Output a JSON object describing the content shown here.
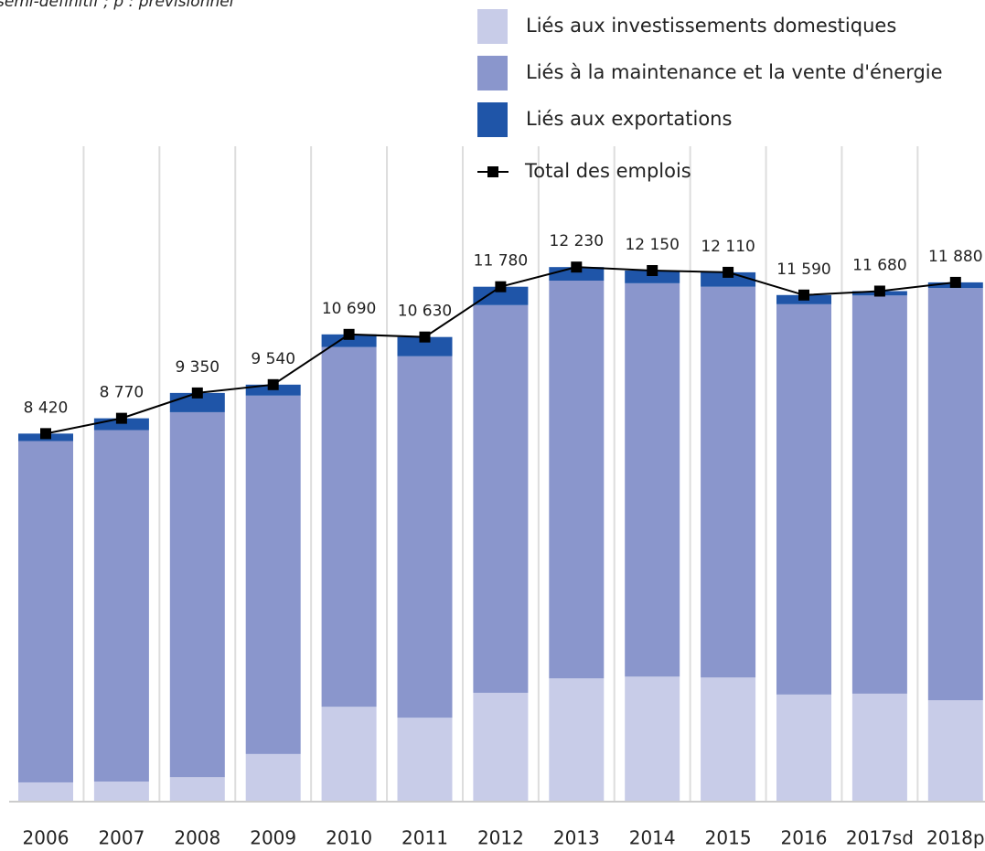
{
  "chart_data": {
    "type": "stacked-bar-line",
    "subtitle": "semi-définitif ; p : prévisionnel",
    "categories": [
      "2006",
      "2007",
      "2008",
      "2009",
      "2010",
      "2011",
      "2012",
      "2013",
      "2014",
      "2015",
      "2016",
      "2017sd",
      "2018p"
    ],
    "series": [
      {
        "name": "Liés aux investissements domestiques",
        "color": "#c8cce8",
        "kind": "bar",
        "values": [
          440,
          460,
          560,
          1090,
          2170,
          1920,
          2490,
          2820,
          2860,
          2840,
          2450,
          2470,
          2320
        ]
      },
      {
        "name": "Liés à la maintenance et la vente d'énergie",
        "color": "#8a96cc",
        "kind": "bar",
        "values": [
          7810,
          8040,
          8350,
          8200,
          8230,
          8270,
          8870,
          9100,
          9000,
          8940,
          8930,
          9110,
          9430
        ]
      },
      {
        "name": "Liés aux exportations",
        "color": "#1f55a8",
        "kind": "bar",
        "values": [
          170,
          270,
          440,
          250,
          290,
          440,
          420,
          310,
          290,
          330,
          210,
          100,
          130
        ]
      },
      {
        "name": "Total des emplois",
        "color": "#000000",
        "kind": "line",
        "values": [
          8420,
          8770,
          9350,
          9540,
          10690,
          10630,
          11780,
          12230,
          12150,
          12110,
          11590,
          11680,
          11880
        ],
        "value_labels": [
          "8 420",
          "8 770",
          "9 350",
          "9 540",
          "10 690",
          "10 630",
          "11 780",
          "12 230",
          "12 150",
          "12 110",
          "11 590",
          "11 680",
          "11 880"
        ]
      }
    ],
    "ylim": [
      0,
      18340
    ]
  }
}
